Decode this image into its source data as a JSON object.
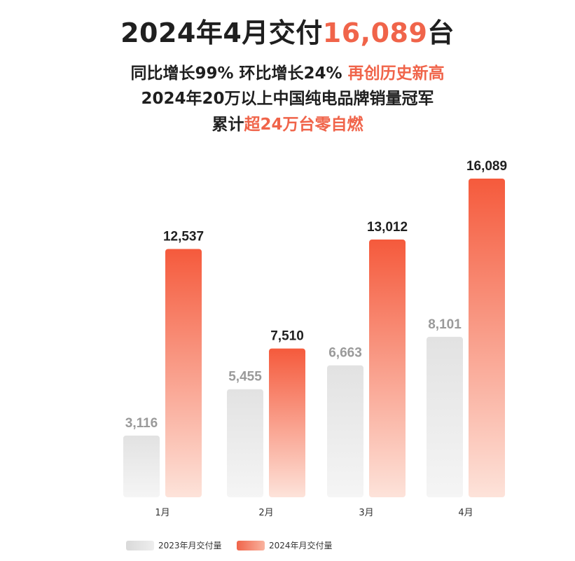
{
  "header": {
    "title_prefix": "2024年4月交付",
    "title_value": "16,089",
    "title_suffix": "台",
    "line1_text": "同比增长99% 环比增长24% ",
    "line1_highlight": "再创历史新高",
    "line2_text": "2024年20万以上中国纯电品牌销量冠军",
    "line3_prefix": "累计",
    "line3_highlight": "超24万台零自燃"
  },
  "colors": {
    "accent": "#f0644a",
    "bar_2024_top": "#f55a3c",
    "bar_2024_bottom": "#fde3da",
    "bar_2023_top": "#e2e2e2",
    "bar_2023_bottom": "#f5f5f5",
    "label_2024": "#1f1f1f",
    "label_2023": "#9a9a9a"
  },
  "chart_data": {
    "type": "bar",
    "categories": [
      "1月",
      "2月",
      "3月",
      "4月"
    ],
    "series": [
      {
        "name": "2023年月交付量",
        "values": [
          3116,
          5455,
          6663,
          8101
        ],
        "labels": [
          "3,116",
          "5,455",
          "6,663",
          "8,101"
        ]
      },
      {
        "name": "2024年月交付量",
        "values": [
          12537,
          7510,
          13012,
          16089
        ],
        "labels": [
          "12,537",
          "7,510",
          "13,012",
          "16,089"
        ]
      }
    ],
    "title": "",
    "xlabel": "",
    "ylabel": "",
    "ylim": [
      0,
      16089
    ],
    "grid": false,
    "legend_position": "bottom-left"
  }
}
